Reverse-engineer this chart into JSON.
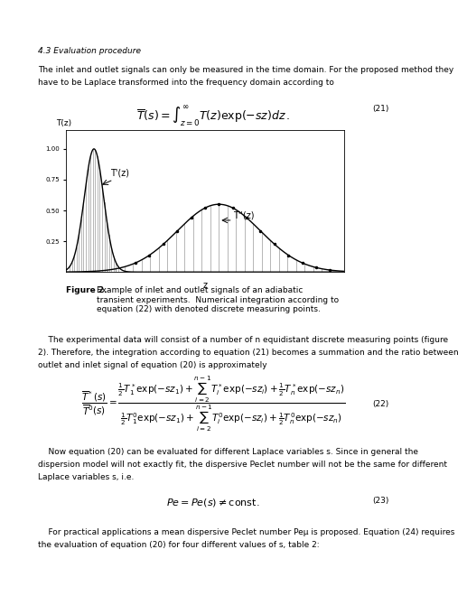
{
  "page_width": 4.52,
  "page_height": 6.4,
  "bg_color": "#ffffff",
  "text_color": "#000000",
  "section_heading": "4.3 Evaluation procedure",
  "para1": "The inlet and outlet signals can only be measured in the time domain. For the proposed method they\nhave to be Laplace transformed into the frequency domain according to",
  "eq21_label": "(21)",
  "graph_ylabel": "T(z)",
  "curve1_label": "T'(z)",
  "curve2_label": "T''(z)",
  "fig_label": "z",
  "fig_caption_bold": "Figure 2.",
  "fig_caption_rest": " Example of inlet and outlet signals of an adiabatic\ntransient experiments. Numerical integration according to\nequation (22) with denoted discrete measuring points.",
  "para2": "    The experimental data will consist of a number of n equidistant discrete measuring points (figure\n2). Therefore, the integration according to equation (21) becomes a summation and the ratio between\noutlet and inlet signal of equation (20) is approximately",
  "eq22_label": "(22)",
  "para3": "    Now equation (20) can be evaluated for different Laplace variables s. Since in general the\ndispersion model will not exactly fit, the dispersive Peclet number will not be the same for different\nLaplace variables s, i.e.",
  "eq23_label": "(23)",
  "para4": "    For practical applications a mean dispersive Peclet number Peμ is proposed. Equation (24) requires\nthe evaluation of equation (20) for four different values of s, table 2:"
}
